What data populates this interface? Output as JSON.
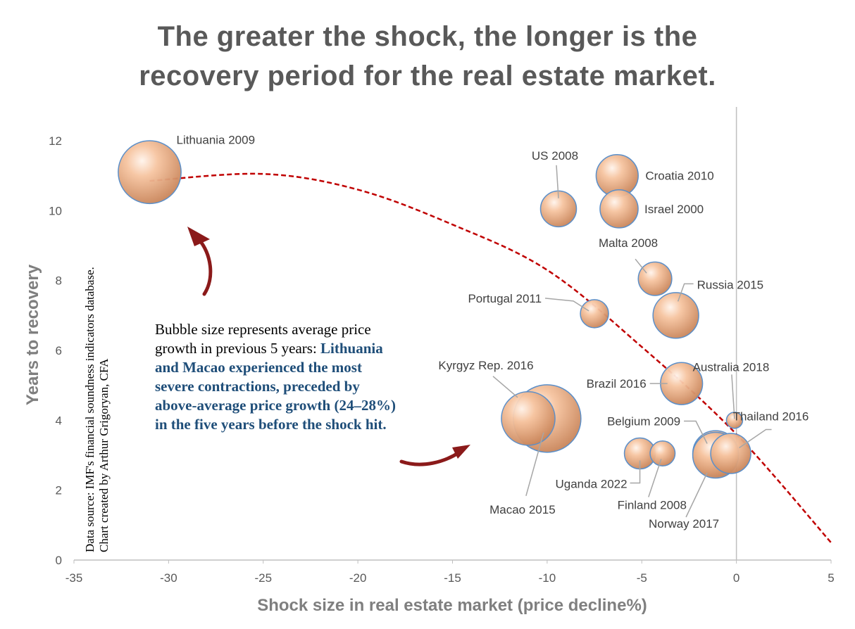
{
  "title_lines": [
    "The greater the shock, the longer is the",
    "recovery period for the real estate market."
  ],
  "note": {
    "plain": "Bubble size represents average price growth in previous 5 years:",
    "emphasis": "Lithuania and Macao experienced the most severe contractions, preceded by above-average price growth (24–28%) in the five years before the shock hit."
  },
  "source_lines": [
    "Data source: IMF's financial soundness indicators database.",
    "Chart created by Arthur Grigoryan, CFA"
  ],
  "colors": {
    "bubble_fill": "#f4b183",
    "bubble_edge": "#5b8fc9",
    "trend": "#c00000",
    "arrow": "#8b1a1a",
    "axis_title": "#7f7f7f",
    "emphasis_text": "#1f4e79"
  },
  "chart_data": {
    "type": "scatter",
    "title": "The greater the shock, the longer is the recovery period for the real estate market.",
    "xlabel": "Shock size in real estate market (price decline%)",
    "ylabel": "Years to recovery",
    "xlim": [
      -35,
      5
    ],
    "ylim": [
      0,
      12
    ],
    "xticks": [
      -35,
      -30,
      -25,
      -20,
      -15,
      -10,
      -5,
      0,
      5
    ],
    "yticks": [
      0,
      2,
      4,
      6,
      8,
      10,
      12
    ],
    "grid": false,
    "points": [
      {
        "label": "Lithuania 2009",
        "x": -31,
        "y": 11.1,
        "size": 24
      },
      {
        "label": "US 2008",
        "x": -9.4,
        "y": 10.05,
        "size": 7
      },
      {
        "label": "Croatia 2010",
        "x": -6.3,
        "y": 11.0,
        "size": 10
      },
      {
        "label": "Israel 2000",
        "x": -6.2,
        "y": 10.05,
        "size": 8
      },
      {
        "label": "Malta 2008",
        "x": -4.3,
        "y": 8.05,
        "size": 6
      },
      {
        "label": "Russia 2015",
        "x": -3.2,
        "y": 7.0,
        "size": 12
      },
      {
        "label": "Portugal 2011",
        "x": -7.5,
        "y": 7.05,
        "size": 4
      },
      {
        "label": "Brazil 2016",
        "x": -2.9,
        "y": 5.05,
        "size": 10
      },
      {
        "label": "Australia 2018",
        "x": -0.1,
        "y": 4.0,
        "size": 1
      },
      {
        "label": "Thailand 2016",
        "x": -0.3,
        "y": 3.05,
        "size": 9
      },
      {
        "label": "Belgium 2009",
        "x": -1.1,
        "y": 3.05,
        "size": 12
      },
      {
        "label": "Kyrgyz Rep. 2016",
        "x": -11.0,
        "y": 4.05,
        "size": 17
      },
      {
        "label": "Macao 2015",
        "x": -10.0,
        "y": 4.05,
        "size": 28
      },
      {
        "label": "Uganda 2022",
        "x": -5.1,
        "y": 3.05,
        "size": 5
      },
      {
        "label": "Finland 2008",
        "x": -3.9,
        "y": 3.05,
        "size": 3
      },
      {
        "label": "Norway 2017",
        "x": -1.1,
        "y": 3.0,
        "size": 12
      }
    ],
    "trendline": {
      "type": "polynomial",
      "x": [
        -31,
        -25,
        -20,
        -15,
        -10,
        -5,
        0,
        5
      ],
      "y": [
        10.85,
        11.05,
        10.6,
        9.6,
        8.3,
        6.1,
        3.6,
        0.5
      ]
    }
  }
}
